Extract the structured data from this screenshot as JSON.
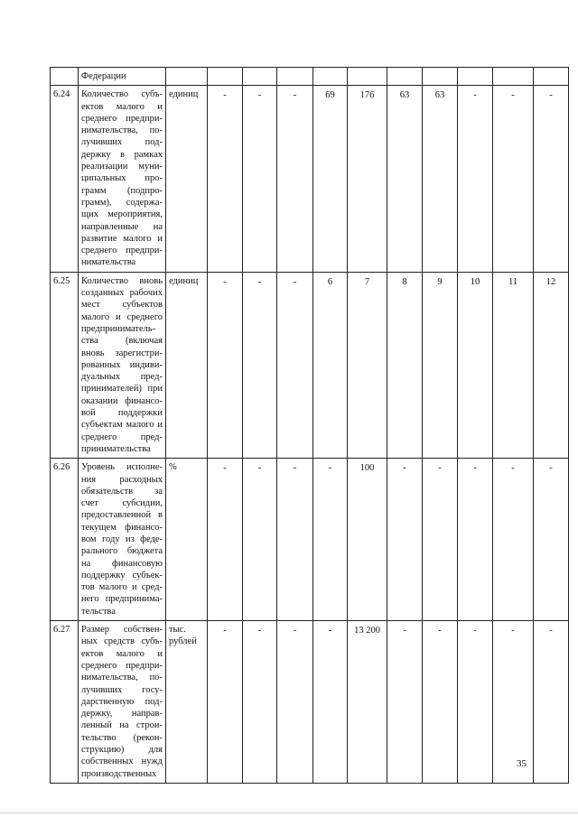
{
  "header_row": {
    "description": "Федерации"
  },
  "rows": [
    {
      "num": "6.24",
      "description": "Количество субъ­ектов малого и среднего предпри­нимательства, по­лучивших под­держку в рамках реализации муни­ципальных про­грамм (подпро­грамм), содержа­щих мероприятия, направленные на развитие малого и среднего предпри­нимательства",
      "unit": "единиц",
      "values": [
        "-",
        "-",
        "-",
        "69",
        "176",
        "63",
        "63",
        "-",
        "-",
        "-"
      ]
    },
    {
      "num": "6.25",
      "description": "Количество вновь созданных рабочих мест субъектов малого и среднего предприниматель­ства (включая вновь зарегистри­рованных индиви­дуальных пред­принимателей) при оказании финансо­вой поддержки субъектам малого и среднего пред­принимательства",
      "unit": "единиц",
      "values": [
        "-",
        "-",
        "-",
        "6",
        "7",
        "8",
        "9",
        "10",
        "11",
        "12"
      ]
    },
    {
      "num": "6.26",
      "description": "Уровень исполне­ния расходных обязательств за счет субсидии, предоставленной в текущем финансо­вом году из феде­рального бюджета на финансовую поддержку субъек­тов малого и сред­него предпринима­тельства",
      "unit": "%",
      "values": [
        "-",
        "-",
        "-",
        "-",
        "100",
        "-",
        "-",
        "-",
        "-",
        "-"
      ]
    },
    {
      "num": "6.27",
      "description": "Размер собствен­ных средств субъ­ектов малого и среднего предпри­нимательства, по­лучивших госу­дарственную под­держку, направ­ленный на строи­тельство (рекон­струкцию) для собственных нужд производственных",
      "unit": "тыс. рублей",
      "values": [
        "-",
        "-",
        "-",
        "-",
        "13 200",
        "-",
        "-",
        "-",
        "-",
        "-"
      ]
    }
  ],
  "page_number": "35"
}
